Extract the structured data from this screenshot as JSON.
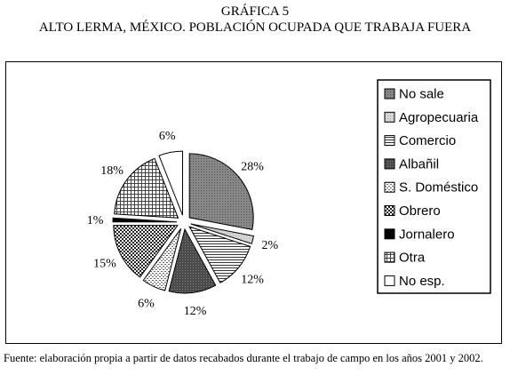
{
  "figure": {
    "number": "GRÁFICA 5",
    "title": "ALTO LERMA, MÉXICO. POBLACIÓN OCUPADA QUE TRABAJA FUERA",
    "source": "Fuente: elaboración propia a partir de datos recabados durante el trabajo de campo en los años 2001 y 2002."
  },
  "chart_data": {
    "type": "pie",
    "title": "ALTO LERMA, MÉXICO. POBLACIÓN OCUPADA QUE TRABAJA FUERA",
    "legend_position": "right",
    "slices": [
      {
        "label": "No sale",
        "value": 28,
        "display": "28%",
        "pattern": "dots"
      },
      {
        "label": "Agropecuaria",
        "value": 2,
        "display": "2%",
        "pattern": "light"
      },
      {
        "label": "Comercio",
        "value": 12,
        "display": "12%",
        "pattern": "hlines"
      },
      {
        "label": "Albañil",
        "value": 12,
        "display": "12%",
        "pattern": "dark"
      },
      {
        "label": "S. Doméstico",
        "value": 6,
        "display": "6%",
        "pattern": "dashes"
      },
      {
        "label": "Obrero",
        "value": 15,
        "display": "15%",
        "pattern": "checker"
      },
      {
        "label": "Jornalero",
        "value": 1,
        "display": "1%",
        "pattern": "black"
      },
      {
        "label": "Otra",
        "value": 18,
        "display": "18%",
        "pattern": "grid"
      },
      {
        "label": "No esp.",
        "value": 6,
        "display": "6%",
        "pattern": "white"
      }
    ]
  }
}
